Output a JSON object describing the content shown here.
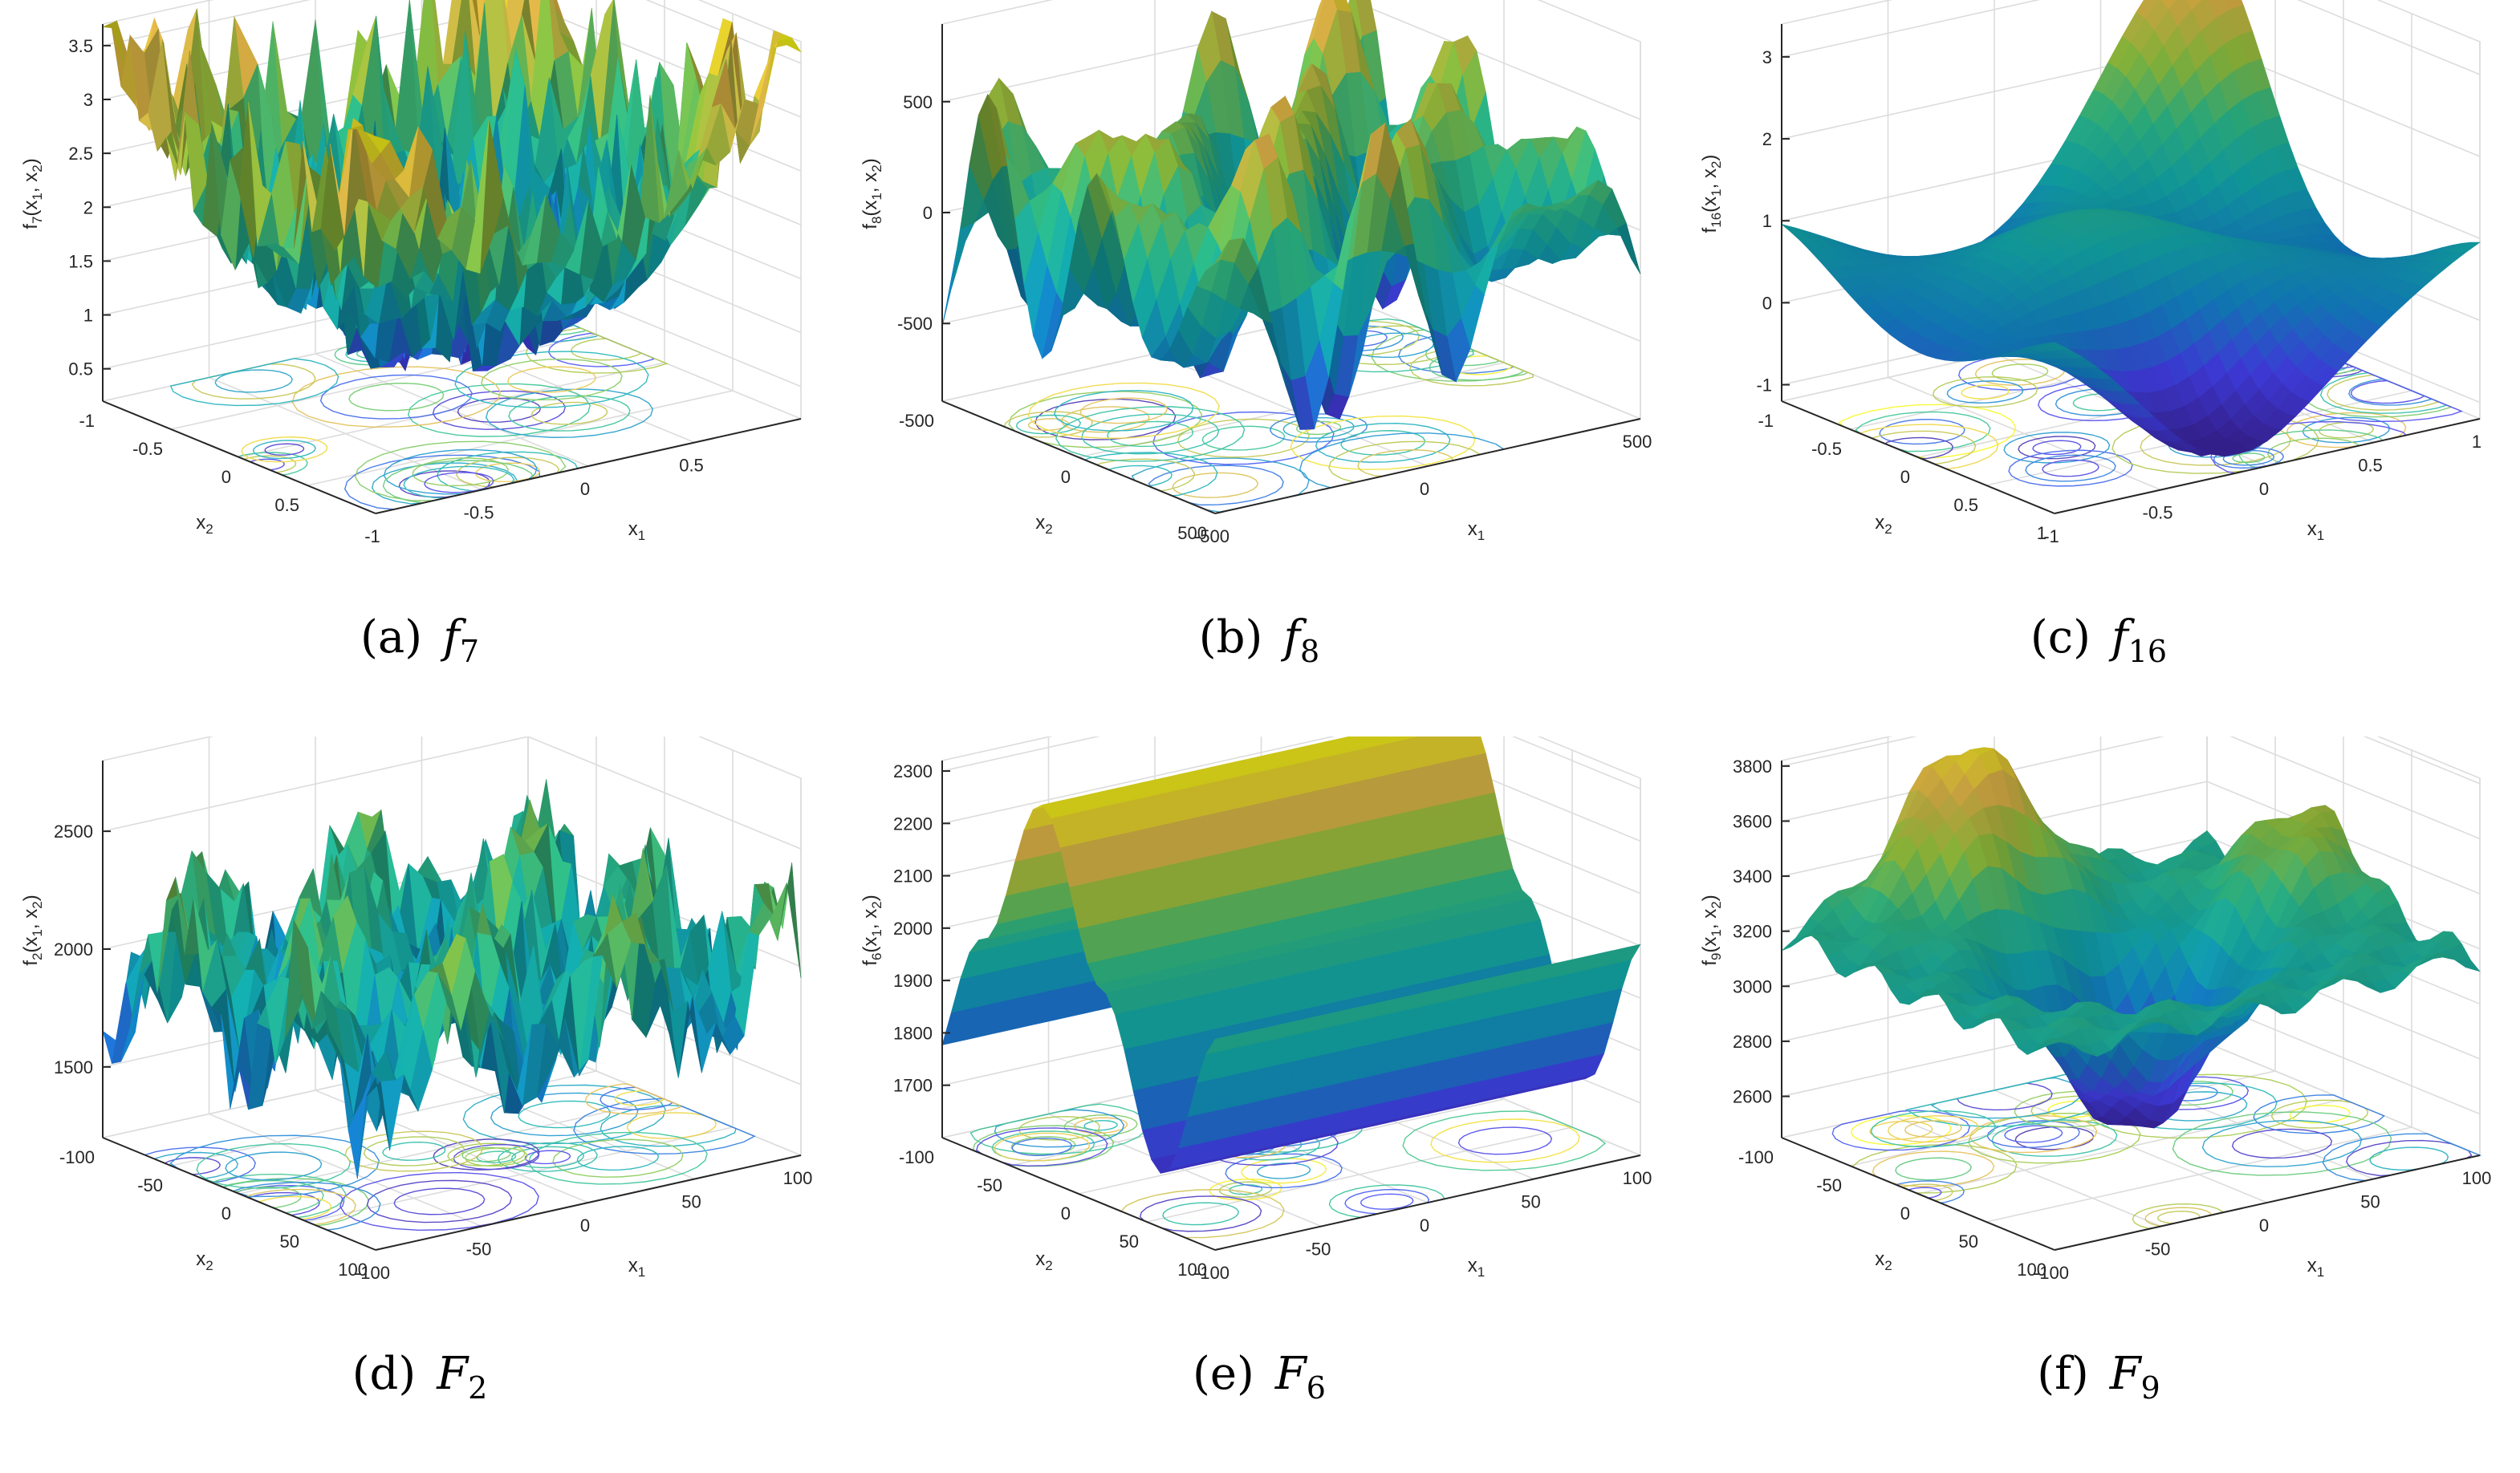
{
  "colors": {
    "axis": "#262626",
    "grid": "#dcdcdc",
    "colormap": [
      "#3e26a8",
      "#4743f9",
      "#1389d2",
      "#13b1b5",
      "#30c28c",
      "#97c93f",
      "#e7ba4a",
      "#f9fb14"
    ]
  },
  "chart_data": [
    {
      "type": "surface",
      "caption": {
        "label": "(a)",
        "fn": "f",
        "sub": "7"
      },
      "zlabel": "f",
      "zsub": "7",
      "xlabel": "x",
      "xsub": "1",
      "ylabel": "x",
      "ysub": "2",
      "xlim": [
        -1,
        1
      ],
      "ylim": [
        -1,
        1
      ],
      "zlim": [
        0.2,
        3.7
      ],
      "zticks": [
        "0.5",
        "1",
        "1.5",
        "2",
        "2.5",
        "3",
        "3.5"
      ],
      "zvals": [
        0.5,
        1,
        1.5,
        2,
        2.5,
        3,
        3.5
      ],
      "xticks": [
        "-1",
        "-0.5",
        "0",
        "0.5"
      ],
      "xvals": [
        -1,
        -0.5,
        0,
        0.5
      ],
      "yticks": [
        "-1",
        "-0.5",
        "0",
        "0.5"
      ],
      "yvals": [
        -1,
        -0.5,
        0,
        0.5
      ],
      "description": "Rugged bowl-shaped surface with many sharp spikes, minimum near origin"
    },
    {
      "type": "surface",
      "caption": {
        "label": "(b)",
        "fn": "f",
        "sub": "8"
      },
      "zlabel": "f",
      "zsub": "8",
      "xlabel": "x",
      "xsub": "1",
      "ylabel": "x",
      "ysub": "2",
      "xlim": [
        -500,
        500
      ],
      "ylim": [
        -500,
        500
      ],
      "zlim": [
        -850,
        850
      ],
      "zticks": [
        "-500",
        "0",
        "500"
      ],
      "zvals": [
        -500,
        0,
        500
      ],
      "xticks": [
        "-500",
        "0",
        "500"
      ],
      "xvals": [
        -500,
        0,
        500
      ],
      "yticks": [
        "-500",
        "0",
        "500"
      ],
      "yvals": [
        -500,
        0,
        500
      ],
      "description": "Highly oscillatory egg-crate surface"
    },
    {
      "type": "surface",
      "caption": {
        "label": "(c)",
        "fn": "f",
        "sub": "16"
      },
      "zlabel": "f",
      "zsub": "16",
      "xlabel": "x",
      "xsub": "1",
      "ylabel": "x",
      "ysub": "2",
      "xlim": [
        -1,
        1
      ],
      "ylim": [
        -1,
        1
      ],
      "zlim": [
        -1.2,
        3.4
      ],
      "zticks": [
        "-1",
        "0",
        "1",
        "2",
        "3"
      ],
      "zvals": [
        -1,
        0,
        1,
        2,
        3
      ],
      "xticks": [
        "-1",
        "-0.5",
        "0",
        "0.5",
        "1"
      ],
      "xvals": [
        -1,
        -0.5,
        0,
        0.5,
        1
      ],
      "yticks": [
        "-1",
        "-0.5",
        "0",
        "0.5",
        "1"
      ],
      "yvals": [
        -1,
        -0.5,
        0,
        0.5,
        1
      ],
      "description": "Smooth multimodal surface with a peak at one corner"
    },
    {
      "type": "surface",
      "caption": {
        "label": "(d)",
        "fn": "F",
        "sub": "2"
      },
      "zlabel": "f",
      "zsub": "2",
      "xlabel": "x",
      "xsub": "1",
      "ylabel": "x",
      "ysub": "2",
      "xlim": [
        -100,
        100
      ],
      "ylim": [
        -100,
        100
      ],
      "zlim": [
        1200,
        2800
      ],
      "zticks": [
        "1500",
        "2000",
        "2500"
      ],
      "zvals": [
        1500,
        2000,
        2500
      ],
      "xticks": [
        "-100",
        "-50",
        "0",
        "50",
        "100"
      ],
      "xvals": [
        -100,
        -50,
        0,
        50,
        100
      ],
      "yticks": [
        "-100",
        "-50",
        "0",
        "50",
        "100"
      ],
      "yvals": [
        -100,
        -50,
        0,
        50,
        100
      ],
      "description": "Noisy multimodal surface with many peaks"
    },
    {
      "type": "surface",
      "caption": {
        "label": "(e)",
        "fn": "F",
        "sub": "6"
      },
      "zlabel": "f",
      "zsub": "6",
      "xlabel": "x",
      "xsub": "1",
      "ylabel": "x",
      "ysub": "2",
      "xlim": [
        -100,
        100
      ],
      "ylim": [
        -100,
        100
      ],
      "zlim": [
        1600,
        2320
      ],
      "zticks": [
        "1700",
        "1800",
        "1900",
        "2000",
        "2100",
        "2200",
        "2300"
      ],
      "zvals": [
        1700,
        1800,
        1900,
        2000,
        2100,
        2200,
        2300
      ],
      "xticks": [
        "-100",
        "-50",
        "0",
        "50",
        "100"
      ],
      "xvals": [
        -100,
        -50,
        0,
        50,
        100
      ],
      "yticks": [
        "-100",
        "-50",
        "0",
        "50",
        "100"
      ],
      "yvals": [
        -100,
        -50,
        0,
        50,
        100
      ],
      "description": "Ridged surface varying only along x2"
    },
    {
      "type": "surface",
      "caption": {
        "label": "(f)",
        "fn": "F",
        "sub": "9"
      },
      "zlabel": "f",
      "zsub": "9",
      "xlabel": "x",
      "xsub": "1",
      "ylabel": "x",
      "ysub": "2",
      "xlim": [
        -100,
        100
      ],
      "ylim": [
        -100,
        100
      ],
      "zlim": [
        2450,
        3820
      ],
      "zticks": [
        "2600",
        "2800",
        "3000",
        "3200",
        "3400",
        "3600",
        "3800"
      ],
      "zvals": [
        2600,
        2800,
        3000,
        3200,
        3400,
        3600,
        3800
      ],
      "xticks": [
        "-100",
        "-50",
        "0",
        "50",
        "100"
      ],
      "xvals": [
        -100,
        -50,
        0,
        50,
        100
      ],
      "yticks": [
        "-100",
        "-50",
        "0",
        "50",
        "100"
      ],
      "yvals": [
        -100,
        -50,
        0,
        50,
        100
      ],
      "description": "Basin-shaped surface with central minimum and surrounding peaks"
    }
  ]
}
